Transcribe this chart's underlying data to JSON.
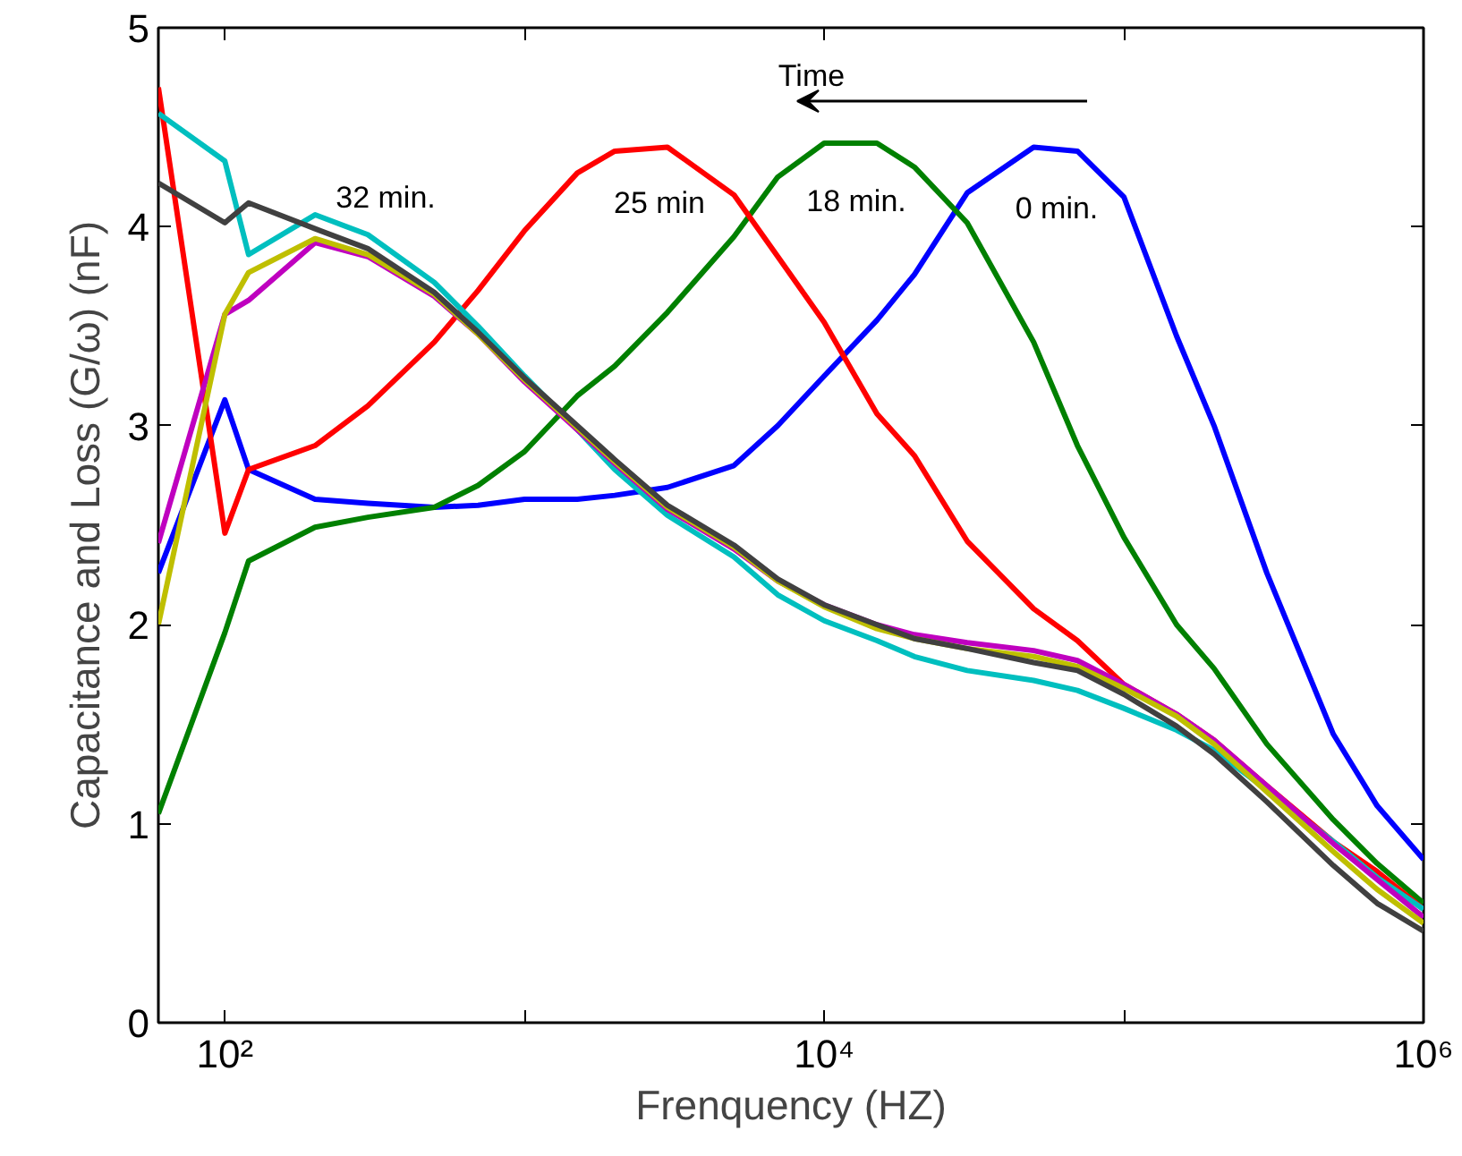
{
  "chart_data": {
    "type": "line",
    "xlabel": "Frenquency (HZ)",
    "ylabel": "Capacitance and Loss (G/ω) (nF)",
    "x": [
      60,
      100,
      120,
      200,
      300,
      500,
      700,
      1000,
      1500,
      2000,
      3000,
      5000,
      7000,
      10000,
      15000,
      20000,
      30000,
      50000,
      70000,
      100000,
      150000,
      200000,
      300000,
      500000,
      700000,
      1000000
    ],
    "series": [
      {
        "color": "#0000ff",
        "values": [
          2.26,
          3.13,
          2.78,
          2.63,
          2.61,
          2.59,
          2.6,
          2.63,
          2.63,
          2.65,
          2.69,
          2.8,
          3.0,
          3.25,
          3.53,
          3.76,
          4.17,
          4.4,
          4.38,
          4.15,
          3.45,
          3.0,
          2.26,
          1.45,
          1.09,
          0.82
        ]
      },
      {
        "color": "#008000",
        "values": [
          1.05,
          1.96,
          2.32,
          2.49,
          2.54,
          2.59,
          2.7,
          2.87,
          3.15,
          3.3,
          3.57,
          3.95,
          4.25,
          4.42,
          4.42,
          4.3,
          4.02,
          3.42,
          2.9,
          2.44,
          2.0,
          1.78,
          1.4,
          1.02,
          0.8,
          0.6
        ]
      },
      {
        "color": "#ff0000",
        "values": [
          4.7,
          2.46,
          2.78,
          2.9,
          3.1,
          3.42,
          3.68,
          3.98,
          4.27,
          4.38,
          4.4,
          4.16,
          3.85,
          3.52,
          3.06,
          2.85,
          2.42,
          2.08,
          1.92,
          1.7,
          1.55,
          1.42,
          1.19,
          0.91,
          0.76,
          0.57
        ]
      },
      {
        "color": "#00bfbf",
        "values": [
          4.57,
          4.33,
          3.86,
          4.06,
          3.96,
          3.72,
          3.5,
          3.25,
          2.98,
          2.78,
          2.55,
          2.34,
          2.15,
          2.02,
          1.92,
          1.84,
          1.77,
          1.72,
          1.67,
          1.58,
          1.47,
          1.37,
          1.17,
          0.91,
          0.73,
          0.57
        ]
      },
      {
        "color": "#bf00bf",
        "values": [
          2.41,
          3.56,
          3.63,
          3.92,
          3.85,
          3.65,
          3.46,
          3.22,
          2.98,
          2.81,
          2.58,
          2.38,
          2.22,
          2.1,
          2.0,
          1.95,
          1.91,
          1.87,
          1.82,
          1.7,
          1.55,
          1.42,
          1.19,
          0.9,
          0.72,
          0.53
        ]
      },
      {
        "color": "#bfbf00",
        "values": [
          2.0,
          3.56,
          3.77,
          3.94,
          3.86,
          3.66,
          3.46,
          3.23,
          2.99,
          2.82,
          2.59,
          2.39,
          2.22,
          2.09,
          1.98,
          1.93,
          1.88,
          1.84,
          1.79,
          1.68,
          1.54,
          1.4,
          1.16,
          0.86,
          0.67,
          0.5
        ]
      },
      {
        "color": "#404040",
        "values": [
          4.22,
          4.02,
          4.12,
          3.99,
          3.89,
          3.67,
          3.47,
          3.24,
          3.0,
          2.83,
          2.6,
          2.4,
          2.23,
          2.1,
          2.0,
          1.93,
          1.88,
          1.81,
          1.77,
          1.65,
          1.49,
          1.35,
          1.11,
          0.79,
          0.6,
          0.46
        ]
      }
    ],
    "log": "x",
    "xlim": [
      60,
      1000000
    ],
    "xticks": [
      {
        "value": 100,
        "label": "10²"
      },
      {
        "value": 1000,
        "label": null
      },
      {
        "value": 10000,
        "label": "10⁴"
      },
      {
        "value": 100000,
        "label": null
      },
      {
        "value": 1000000,
        "label": "10⁶"
      }
    ],
    "ylim": [
      0,
      5
    ],
    "yticks": [
      0,
      1,
      2,
      3,
      4,
      5
    ],
    "annotations": [
      "Time",
      "32 min.",
      "25 min",
      "18 min.",
      "0 min."
    ],
    "grid": false,
    "line_style": "solid",
    "marker": "none"
  }
}
